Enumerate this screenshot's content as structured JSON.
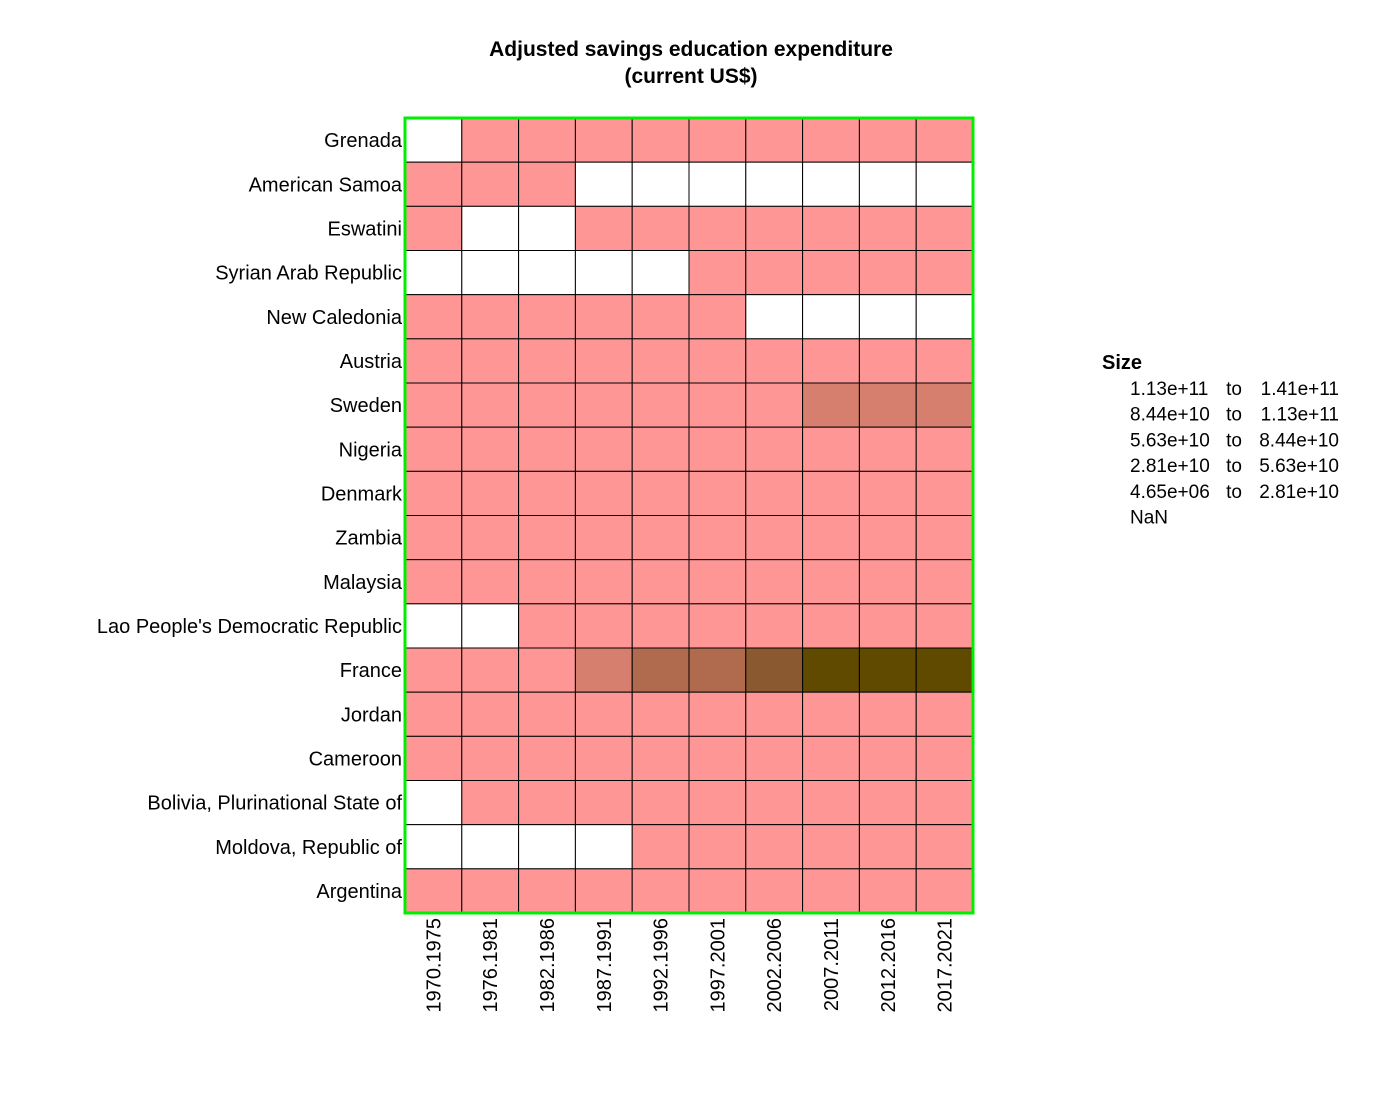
{
  "chart_data": {
    "type": "heatmap",
    "title": [
      "Adjusted savings education expenditure",
      "(current US$)"
    ],
    "rows": [
      "Grenada",
      "American Samoa",
      "Eswatini",
      "Syrian Arab Republic",
      "New Caledonia",
      "Austria",
      "Sweden",
      "Nigeria",
      "Denmark",
      "Zambia",
      "Malaysia",
      "Lao People's Democratic Republic",
      "France",
      "Jordan",
      "Cameroon",
      "Bolivia, Plurinational State of",
      "Moldova, Republic of",
      "Argentina"
    ],
    "columns": [
      "1970.1975",
      "1976.1981",
      "1982.1986",
      "1987.1991",
      "1992.1996",
      "1997.2001",
      "2002.2006",
      "2007.2011",
      "2012.2016",
      "2017.2021"
    ],
    "values": [
      [
        null,
        1,
        1,
        1,
        1,
        1,
        1,
        1,
        1,
        1
      ],
      [
        1,
        1,
        1,
        null,
        null,
        null,
        null,
        null,
        null,
        null
      ],
      [
        1,
        null,
        null,
        1,
        1,
        1,
        1,
        1,
        1,
        1
      ],
      [
        null,
        null,
        null,
        null,
        null,
        1,
        1,
        1,
        1,
        1
      ],
      [
        1,
        1,
        1,
        1,
        1,
        1,
        null,
        null,
        null,
        null
      ],
      [
        1,
        1,
        1,
        1,
        1,
        1,
        1,
        1,
        1,
        1
      ],
      [
        1,
        1,
        1,
        1,
        1,
        1,
        1,
        2,
        2,
        2
      ],
      [
        1,
        1,
        1,
        1,
        1,
        1,
        1,
        1,
        1,
        1
      ],
      [
        1,
        1,
        1,
        1,
        1,
        1,
        1,
        1,
        1,
        1
      ],
      [
        1,
        1,
        1,
        1,
        1,
        1,
        1,
        1,
        1,
        1
      ],
      [
        1,
        1,
        1,
        1,
        1,
        1,
        1,
        1,
        1,
        1
      ],
      [
        null,
        null,
        1,
        1,
        1,
        1,
        1,
        1,
        1,
        1
      ],
      [
        1,
        1,
        1,
        2,
        3,
        3,
        4,
        5,
        5,
        5
      ],
      [
        1,
        1,
        1,
        1,
        1,
        1,
        1,
        1,
        1,
        1
      ],
      [
        1,
        1,
        1,
        1,
        1,
        1,
        1,
        1,
        1,
        1
      ],
      [
        null,
        1,
        1,
        1,
        1,
        1,
        1,
        1,
        1,
        1
      ],
      [
        null,
        null,
        null,
        null,
        1,
        1,
        1,
        1,
        1,
        1
      ],
      [
        1,
        1,
        1,
        1,
        1,
        1,
        1,
        1,
        1,
        1
      ]
    ],
    "legend": {
      "title": "Size",
      "placement": "right",
      "bins": [
        {
          "level": 5,
          "from": "1.13e+11",
          "sep": "to",
          "to": "1.41e+11",
          "color": "#5f4a00"
        },
        {
          "level": 4,
          "from": "8.44e+10",
          "sep": "to",
          "to": "1.13e+11",
          "color": "#8a5930"
        },
        {
          "level": 3,
          "from": "5.63e+10",
          "sep": "to",
          "to": "8.44e+10",
          "color": "#b06b4f"
        },
        {
          "level": 2,
          "from": "2.81e+10",
          "sep": "to",
          "to": "5.63e+10",
          "color": "#d77f6e"
        },
        {
          "level": 1,
          "from": "4.65e+06",
          "sep": "to",
          "to": "2.81e+10",
          "color": "#ff9696"
        },
        {
          "level": 0,
          "label": "NaN",
          "color": "#ffffff"
        }
      ]
    },
    "frame_color": "#00ee00",
    "grid_color": "#000000"
  }
}
